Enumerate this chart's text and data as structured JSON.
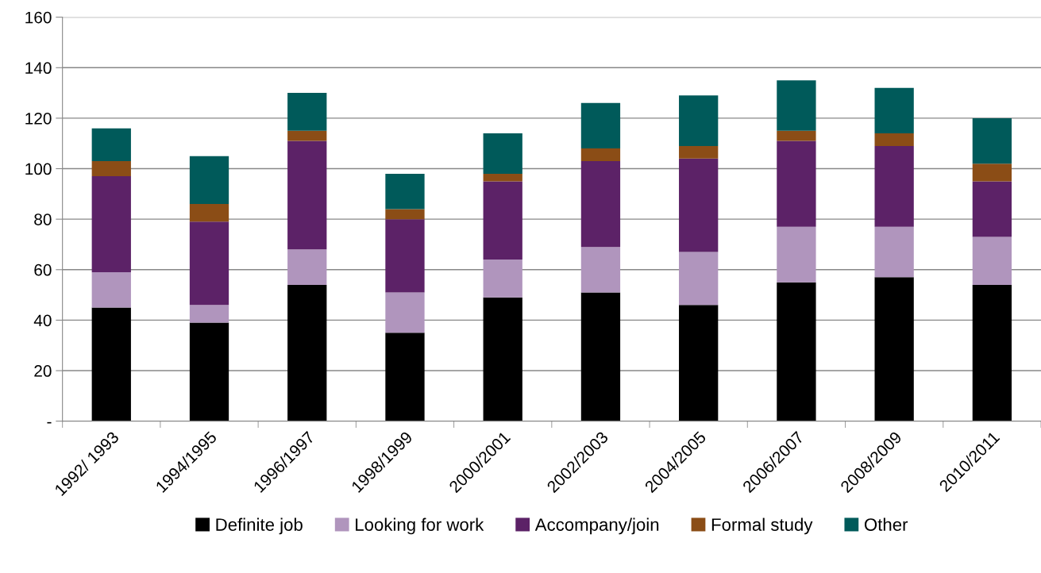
{
  "chart_data": {
    "type": "bar",
    "stacked": true,
    "categories": [
      "1992/ 1993",
      "1994/1995",
      "1996/1997",
      "1998/1999",
      "2000/2001",
      "2002/2003",
      "2004/2005",
      "2006/2007",
      "2008/2009",
      "2010/2011"
    ],
    "series": [
      {
        "name": "Definite job",
        "color": "#000000",
        "values": [
          45,
          39,
          54,
          35,
          49,
          51,
          46,
          55,
          57,
          54
        ]
      },
      {
        "name": "Looking for work",
        "color": "#b095bd",
        "values": [
          14,
          7,
          14,
          16,
          15,
          18,
          21,
          22,
          20,
          19
        ]
      },
      {
        "name": "Accompany/join",
        "color": "#5c2267",
        "values": [
          38,
          33,
          43,
          29,
          31,
          34,
          37,
          34,
          32,
          22
        ]
      },
      {
        "name": "Formal study",
        "color": "#8b4d16",
        "values": [
          6,
          7,
          4,
          4,
          3,
          5,
          5,
          4,
          5,
          7
        ]
      },
      {
        "name": "Other",
        "color": "#005a5a",
        "values": [
          13,
          19,
          15,
          14,
          16,
          18,
          20,
          20,
          18,
          18
        ]
      }
    ],
    "ylim": [
      0,
      160
    ],
    "yticks": [
      {
        "value": 0,
        "label": "-"
      },
      20,
      40,
      60,
      80,
      100,
      120,
      140,
      160
    ],
    "grid": "y",
    "legend": "bottom"
  }
}
